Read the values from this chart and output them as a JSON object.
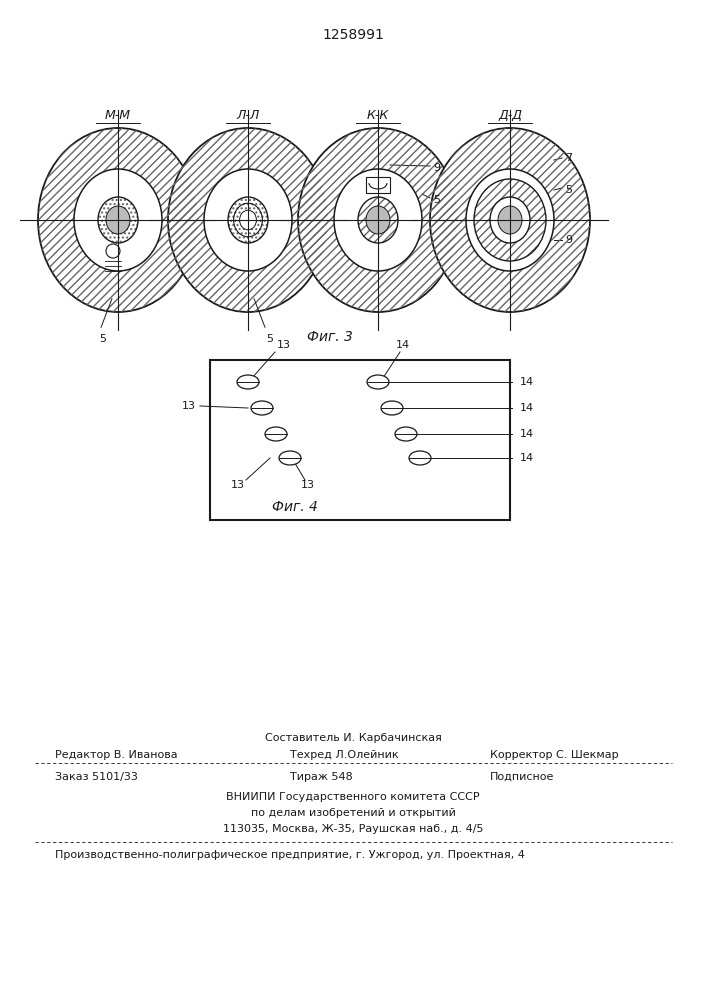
{
  "patent_number": "1258991",
  "fig3_label": "Фиг. 3",
  "fig4_label": "Фиг. 4",
  "section_labels": [
    "М-М",
    "Л-Л",
    "К-К",
    "Д-Д"
  ],
  "footer_sestavitel": "Составитель И. Карбачинская",
  "footer_editor": "Редактор В. Иванова",
  "footer_tekhred": "Техред Л.Олейник",
  "footer_korrektor": "Корректор С. Шекмар",
  "footer_zakaz": "Заказ 5101/33",
  "footer_tirazh": "Тираж 548",
  "footer_podpisnoe": "Подписное",
  "footer_vniipи": "ВНИИПИ Государственного комитета СССР",
  "footer_po_delam": "по делам изобретений и открытий",
  "footer_address": "113035, Москва, Ж-35, Раушская наб., д. 4/5",
  "footer_production": "Производственно-полиграфическое предприятие, г. Ужгород, ул. Проектная, 4",
  "bg_color": "#ffffff",
  "line_color": "#1a1a1a"
}
